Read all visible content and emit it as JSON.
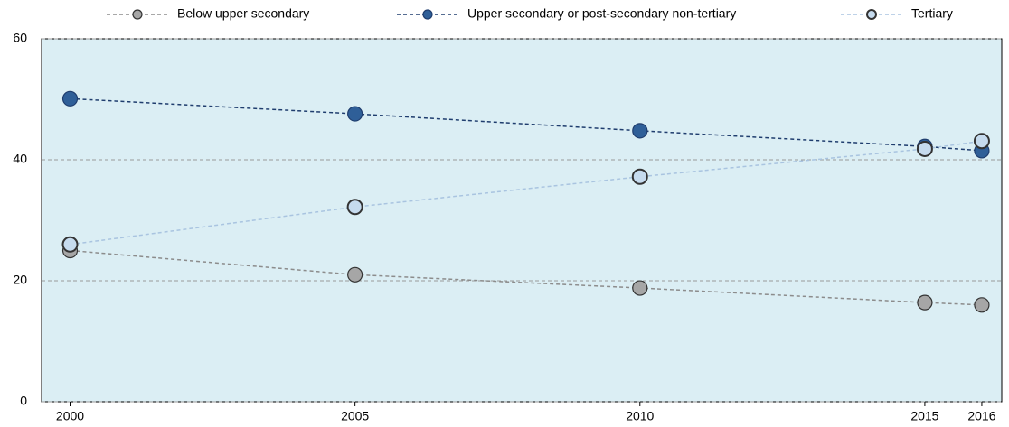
{
  "chart_data": {
    "type": "line",
    "x": [
      2000,
      2005,
      2010,
      2015,
      2016
    ],
    "xlim": [
      1999.5,
      2016.35
    ],
    "xticks": [
      2000,
      2005,
      2010,
      2015,
      2016
    ],
    "ylim": [
      0,
      60
    ],
    "yticks": [
      0,
      20,
      40,
      60
    ],
    "grid": true,
    "legend": "top",
    "series": [
      {
        "name": "Below upper secondary",
        "color": "#a6a6a6",
        "line_color": "#8c8c8c",
        "values": [
          25.0,
          21.0,
          18.8,
          16.4,
          16.0
        ]
      },
      {
        "name": "Upper secondary or post-secondary non-tertiary",
        "color": "#2f5f98",
        "line_color": "#1f3d6e",
        "values": [
          50.1,
          47.6,
          44.8,
          42.2,
          41.5
        ]
      },
      {
        "name": "Tertiary",
        "color": "#c6dbee",
        "line_color": "#a9c4e0",
        "values": [
          26.0,
          32.2,
          37.2,
          41.8,
          43.1
        ]
      }
    ]
  }
}
